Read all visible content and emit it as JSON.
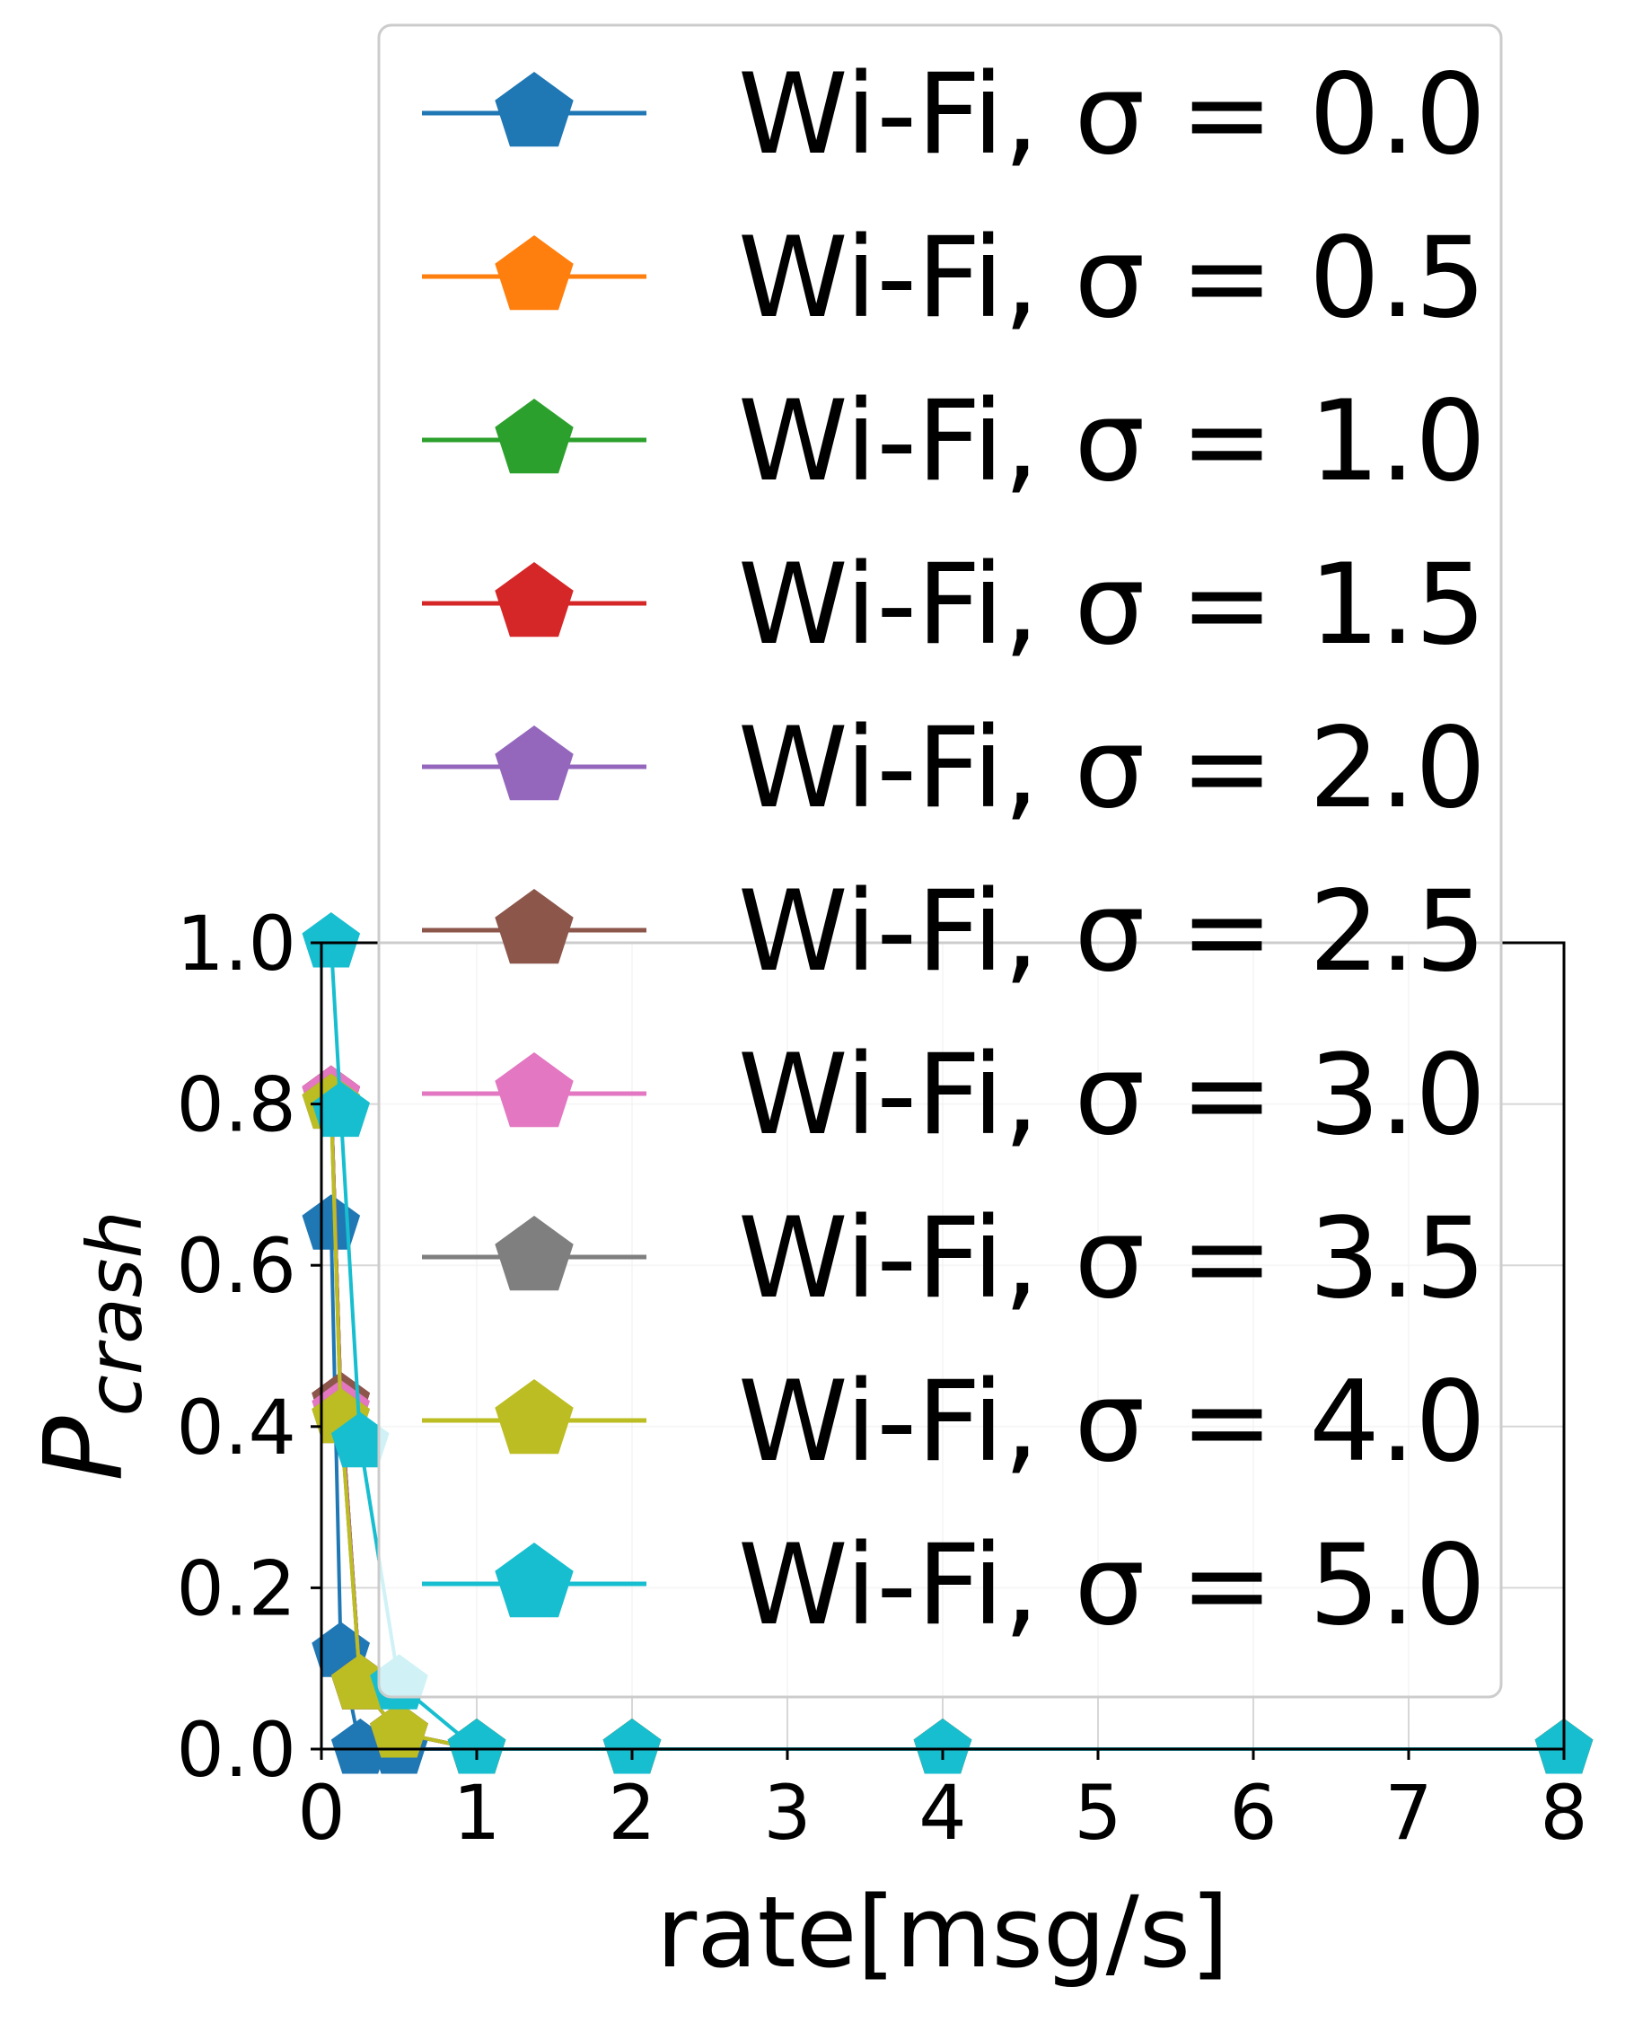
{
  "chart_data": {
    "type": "line",
    "xlabel": "rate[msg/s]",
    "ylabel": {
      "main": "P",
      "sub": "crash"
    },
    "xlim": [
      0,
      8
    ],
    "ylim": [
      0,
      1.0
    ],
    "xticks": [
      "0",
      "1",
      "2",
      "3",
      "4",
      "5",
      "6",
      "7",
      "8"
    ],
    "yticks": [
      "0.0",
      "0.2",
      "0.4",
      "0.6",
      "0.8",
      "1.0"
    ],
    "grid": true,
    "legend_position": "upper-right",
    "marker": "pentagon",
    "x": [
      0.0625,
      0.125,
      0.25,
      0.5,
      1,
      2,
      4,
      8
    ],
    "series": [
      {
        "name": "Wi-Fi, σ = 0.0",
        "color": "#1f77b4",
        "values": [
          0.65,
          0.12,
          0.0,
          0.0,
          0.0,
          0.0,
          0.0,
          0.0
        ]
      },
      {
        "name": "Wi-Fi, σ = 0.5",
        "color": "#ff7f0e",
        "values": [
          0.81,
          0.43,
          0.08,
          0.02,
          0.0,
          0.0,
          0.0,
          0.0
        ]
      },
      {
        "name": "Wi-Fi, σ = 1.0",
        "color": "#2ca02c",
        "values": [
          0.81,
          0.43,
          0.08,
          0.02,
          0.0,
          0.0,
          0.0,
          0.0
        ]
      },
      {
        "name": "Wi-Fi, σ = 1.5",
        "color": "#d62728",
        "values": [
          0.81,
          0.43,
          0.08,
          0.02,
          0.0,
          0.0,
          0.0,
          0.0
        ]
      },
      {
        "name": "Wi-Fi, σ = 2.0",
        "color": "#9467bd",
        "values": [
          0.81,
          0.43,
          0.08,
          0.02,
          0.0,
          0.0,
          0.0,
          0.0
        ]
      },
      {
        "name": "Wi-Fi, σ = 2.5",
        "color": "#8c564b",
        "values": [
          0.81,
          0.43,
          0.08,
          0.02,
          0.0,
          0.0,
          0.0,
          0.0
        ]
      },
      {
        "name": "Wi-Fi, σ = 3.0",
        "color": "#e377c2",
        "values": [
          0.81,
          0.42,
          0.08,
          0.02,
          0.0,
          0.0,
          0.0,
          0.0
        ]
      },
      {
        "name": "Wi-Fi, σ = 3.5",
        "color": "#7f7f7f",
        "values": [
          0.8,
          0.41,
          0.08,
          0.02,
          0.0,
          0.0,
          0.0,
          0.0
        ]
      },
      {
        "name": "Wi-Fi, σ = 4.0",
        "color": "#bcbd22",
        "values": [
          0.8,
          0.41,
          0.08,
          0.02,
          0.0,
          0.0,
          0.0,
          0.0
        ]
      },
      {
        "name": "Wi-Fi, σ = 5.0",
        "color": "#17becf",
        "values": [
          1.0,
          0.79,
          0.38,
          0.08,
          0.0,
          0.0,
          0.0,
          0.0
        ]
      }
    ]
  }
}
